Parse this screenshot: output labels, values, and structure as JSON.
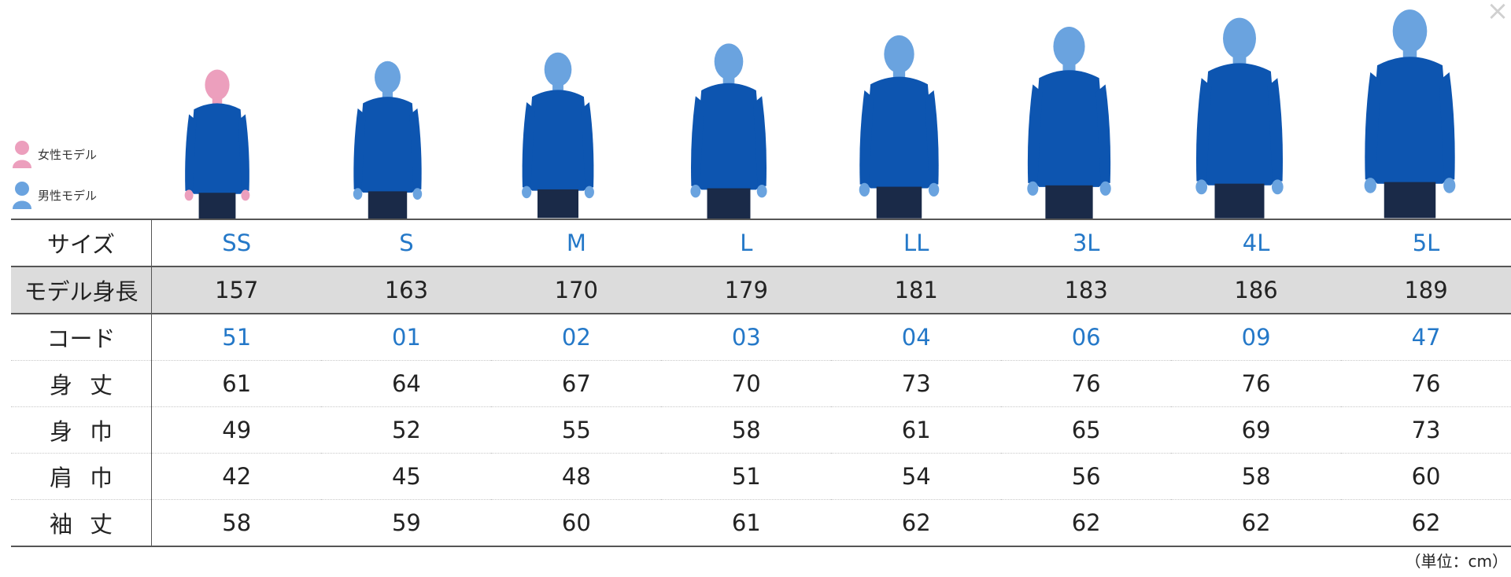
{
  "legend": {
    "female": {
      "label": "女性モデル",
      "icon": "female-person-icon",
      "color": "#ec9fbd"
    },
    "male": {
      "label": "男性モデル",
      "icon": "male-person-icon",
      "color": "#6aa3df"
    }
  },
  "colors": {
    "hoodie": "#0d55b0",
    "size_text": "#2478c8",
    "shaded_row": "#dcdcdc"
  },
  "table": {
    "rows": [
      {
        "label": "サイズ",
        "style": "blue",
        "cells": [
          "SS",
          "S",
          "M",
          "L",
          "LL",
          "3L",
          "4L",
          "5L"
        ]
      },
      {
        "label": "モデル身長",
        "style": "shaded",
        "cells": [
          "157",
          "163",
          "170",
          "179",
          "181",
          "183",
          "186",
          "189"
        ]
      },
      {
        "label": "コード",
        "style": "blue",
        "cells": [
          "51",
          "01",
          "02",
          "03",
          "04",
          "06",
          "09",
          "47"
        ]
      },
      {
        "label": "身丈",
        "style": "spaced",
        "cells": [
          "61",
          "64",
          "67",
          "70",
          "73",
          "76",
          "76",
          "76"
        ]
      },
      {
        "label": "身巾",
        "style": "spaced",
        "cells": [
          "49",
          "52",
          "55",
          "58",
          "61",
          "65",
          "69",
          "73"
        ]
      },
      {
        "label": "肩巾",
        "style": "spaced",
        "cells": [
          "42",
          "45",
          "48",
          "51",
          "54",
          "56",
          "58",
          "60"
        ]
      },
      {
        "label": "袖丈",
        "style": "spaced",
        "cells": [
          "58",
          "59",
          "60",
          "61",
          "62",
          "62",
          "62",
          "62"
        ]
      }
    ]
  },
  "models": [
    {
      "size": "SS",
      "gender": "female"
    },
    {
      "size": "S",
      "gender": "male"
    },
    {
      "size": "M",
      "gender": "male"
    },
    {
      "size": "L",
      "gender": "male"
    },
    {
      "size": "LL",
      "gender": "male"
    },
    {
      "size": "3L",
      "gender": "male"
    },
    {
      "size": "4L",
      "gender": "male"
    },
    {
      "size": "5L",
      "gender": "male"
    }
  ],
  "unit_note": "（単位：cm）"
}
